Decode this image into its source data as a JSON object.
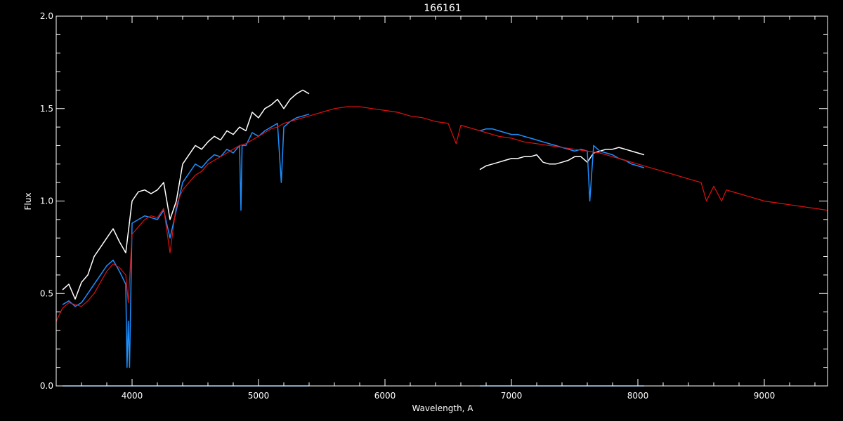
{
  "chart_data": {
    "type": "line",
    "title": "166161",
    "xlabel": "Wavelength, A",
    "ylabel": "Flux",
    "xlim": [
      3400,
      9500
    ],
    "ylim": [
      0,
      2.0
    ],
    "x_ticks": [
      4000,
      5000,
      6000,
      7000,
      8000,
      9000
    ],
    "y_ticks": [
      0.0,
      0.5,
      1.0,
      1.5,
      2.0
    ],
    "y_tick_labels": [
      "0.0",
      "0.5",
      "1.0",
      "1.5",
      "2.0"
    ],
    "grid": false,
    "legend": "none",
    "colors": {
      "background": "#000000",
      "axes": "#ffffff",
      "white_series": "#ffffff",
      "blue_series": "#1e8fff",
      "red_series": "#e01010"
    },
    "series": [
      {
        "color": "white",
        "x": [
          3450,
          3500,
          3550,
          3600,
          3650,
          3700,
          3750,
          3800,
          3850,
          3900,
          3950,
          4000,
          4050,
          4100,
          4150,
          4200,
          4250,
          4300,
          4350,
          4400,
          4450,
          4500,
          4550,
          4600,
          4650,
          4700,
          4750,
          4800,
          4850,
          4900,
          4950,
          5000,
          5050,
          5100,
          5150,
          5200,
          5250,
          5300,
          5350,
          5400
        ],
        "y": [
          0.52,
          0.55,
          0.47,
          0.56,
          0.6,
          0.7,
          0.75,
          0.8,
          0.85,
          0.78,
          0.72,
          1.0,
          1.05,
          1.06,
          1.04,
          1.06,
          1.1,
          0.9,
          1.0,
          1.2,
          1.25,
          1.3,
          1.28,
          1.32,
          1.35,
          1.33,
          1.38,
          1.36,
          1.4,
          1.38,
          1.48,
          1.45,
          1.5,
          1.52,
          1.55,
          1.5,
          1.55,
          1.58,
          1.6,
          1.58
        ]
      },
      {
        "color": "white",
        "x": [
          6750,
          6800,
          6850,
          6900,
          6950,
          7000,
          7050,
          7100,
          7150,
          7200,
          7250,
          7300,
          7350,
          7400,
          7450,
          7500,
          7550,
          7600,
          7650,
          7700,
          7750,
          7800,
          7850,
          7900,
          7950,
          8000,
          8050
        ],
        "y": [
          1.17,
          1.19,
          1.2,
          1.21,
          1.22,
          1.23,
          1.23,
          1.24,
          1.24,
          1.25,
          1.21,
          1.2,
          1.2,
          1.21,
          1.22,
          1.24,
          1.24,
          1.21,
          1.26,
          1.27,
          1.28,
          1.28,
          1.29,
          1.28,
          1.27,
          1.26,
          1.25
        ]
      },
      {
        "color": "blue",
        "x": [
          3450,
          3500,
          3550,
          3600,
          3650,
          3700,
          3750,
          3800,
          3850,
          3900,
          3950,
          3960,
          3970,
          3980,
          4000,
          4050,
          4100,
          4150,
          4200,
          4250,
          4300,
          4350,
          4400,
          4450,
          4500,
          4550,
          4600,
          4650,
          4700,
          4750,
          4800,
          4850,
          4861,
          4870,
          4900,
          4950,
          5000,
          5050,
          5100,
          5150,
          5180,
          5200,
          5250,
          5300,
          5350,
          5400
        ],
        "y": [
          0.44,
          0.46,
          0.43,
          0.45,
          0.5,
          0.55,
          0.6,
          0.65,
          0.68,
          0.62,
          0.55,
          0.1,
          0.35,
          0.1,
          0.88,
          0.9,
          0.92,
          0.91,
          0.9,
          0.95,
          0.8,
          0.95,
          1.1,
          1.15,
          1.2,
          1.18,
          1.22,
          1.25,
          1.24,
          1.28,
          1.26,
          1.3,
          0.95,
          1.3,
          1.3,
          1.37,
          1.35,
          1.38,
          1.4,
          1.42,
          1.1,
          1.4,
          1.43,
          1.45,
          1.46,
          1.47
        ]
      },
      {
        "color": "blue",
        "x": [
          6750,
          6800,
          6850,
          6900,
          6950,
          7000,
          7050,
          7100,
          7150,
          7200,
          7250,
          7300,
          7350,
          7400,
          7450,
          7500,
          7550,
          7600,
          7620,
          7650,
          7700,
          7750,
          7800,
          7850,
          7900,
          7950,
          8000,
          8050
        ],
        "y": [
          1.38,
          1.39,
          1.39,
          1.38,
          1.37,
          1.36,
          1.36,
          1.35,
          1.34,
          1.33,
          1.32,
          1.31,
          1.3,
          1.29,
          1.28,
          1.27,
          1.28,
          1.27,
          1.0,
          1.3,
          1.27,
          1.26,
          1.25,
          1.23,
          1.22,
          1.2,
          1.19,
          1.18
        ]
      },
      {
        "color": "red",
        "x": [
          3400,
          3450,
          3500,
          3550,
          3600,
          3650,
          3700,
          3750,
          3800,
          3850,
          3900,
          3950,
          3970,
          4000,
          4050,
          4100,
          4150,
          4200,
          4250,
          4300,
          4350,
          4400,
          4450,
          4500,
          4550,
          4600,
          4650,
          4700,
          4750,
          4800,
          4850,
          4900,
          4950,
          5000,
          5050,
          5100,
          5150,
          5200,
          5250,
          5300,
          5350,
          5400,
          5500,
          5600,
          5700,
          5800,
          5900,
          6000,
          6100,
          6200,
          6300,
          6400,
          6500,
          6563,
          6600,
          6700,
          6800,
          6900,
          7000,
          7100,
          7200,
          7300,
          7400,
          7500,
          7600,
          7700,
          7800,
          7900,
          8000,
          8100,
          8200,
          8300,
          8400,
          8500,
          8542,
          8600,
          8662,
          8700,
          8800,
          8900,
          9000,
          9100,
          9200,
          9300,
          9400,
          9500
        ],
        "y": [
          0.35,
          0.42,
          0.45,
          0.44,
          0.43,
          0.46,
          0.5,
          0.56,
          0.62,
          0.66,
          0.64,
          0.6,
          0.45,
          0.82,
          0.86,
          0.9,
          0.92,
          0.91,
          0.96,
          0.72,
          0.98,
          1.06,
          1.1,
          1.14,
          1.16,
          1.2,
          1.22,
          1.24,
          1.26,
          1.28,
          1.3,
          1.31,
          1.33,
          1.35,
          1.37,
          1.39,
          1.4,
          1.42,
          1.43,
          1.44,
          1.45,
          1.46,
          1.48,
          1.5,
          1.51,
          1.51,
          1.5,
          1.49,
          1.48,
          1.46,
          1.45,
          1.43,
          1.42,
          1.31,
          1.41,
          1.39,
          1.37,
          1.35,
          1.34,
          1.32,
          1.31,
          1.3,
          1.29,
          1.28,
          1.27,
          1.26,
          1.24,
          1.22,
          1.2,
          1.18,
          1.16,
          1.14,
          1.12,
          1.1,
          1.0,
          1.08,
          1.0,
          1.06,
          1.04,
          1.02,
          1.0,
          0.99,
          0.98,
          0.97,
          0.96,
          0.95
        ]
      },
      {
        "color": "blue",
        "x": [
          3450,
          5400
        ],
        "y": [
          0.0,
          0.0
        ]
      },
      {
        "color": "blue",
        "x": [
          6750,
          8050
        ],
        "y": [
          0.0,
          0.0
        ]
      }
    ]
  }
}
